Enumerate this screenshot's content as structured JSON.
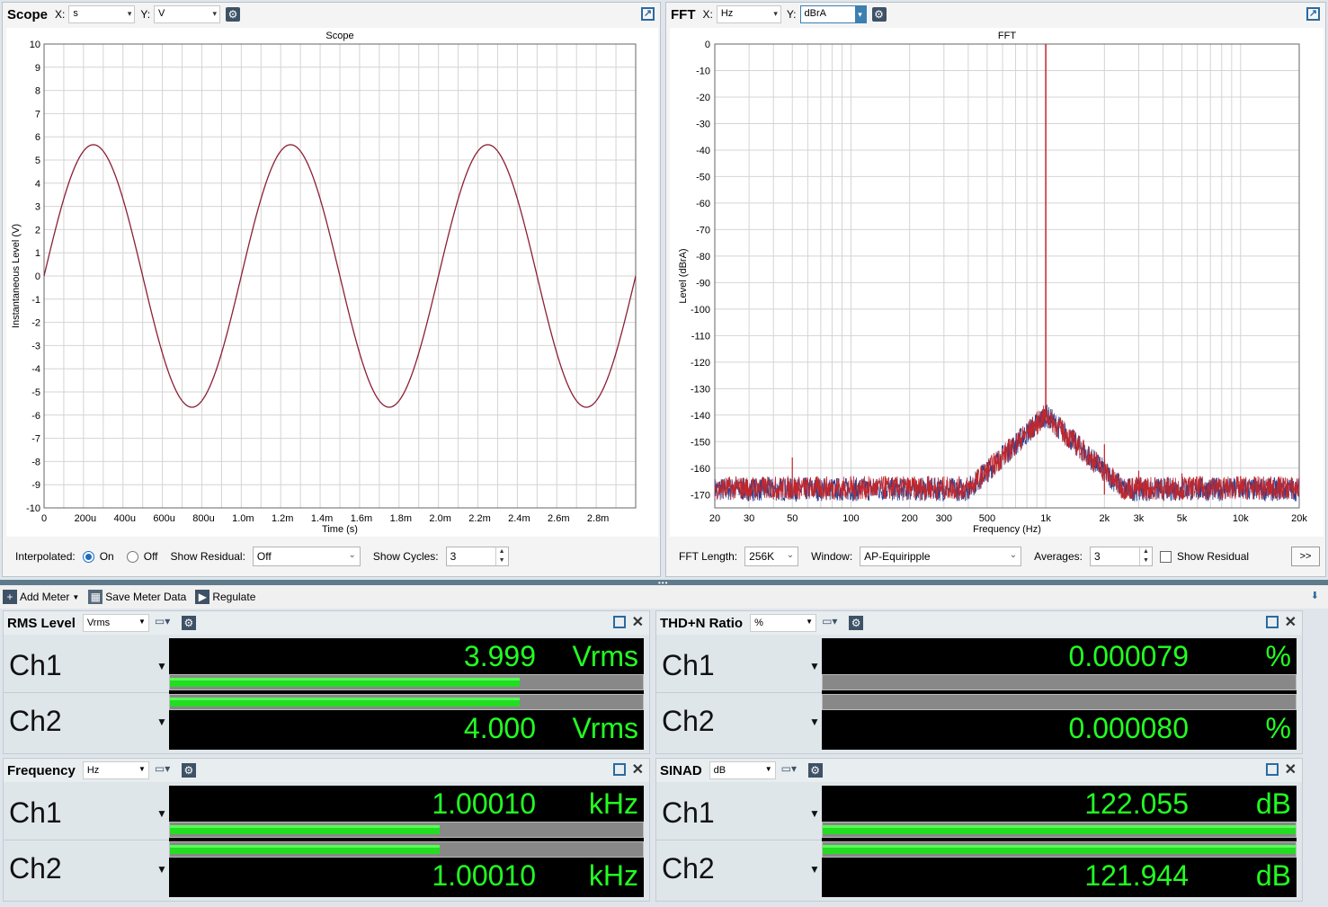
{
  "scope_panel": {
    "title": "Scope",
    "x_axis_label": "X:",
    "x_unit": "s",
    "y_axis_label": "Y:",
    "y_unit": "V",
    "footer": {
      "interpolated_label": "Interpolated:",
      "on_label": "On",
      "off_label": "Off",
      "interpolated_value": "On",
      "show_residual_label": "Show Residual:",
      "show_residual_value": "Off",
      "show_cycles_label": "Show Cycles:",
      "show_cycles_value": "3"
    }
  },
  "fft_panel": {
    "title": "FFT",
    "x_axis_label": "X:",
    "x_unit": "Hz",
    "y_axis_label": "Y:",
    "y_unit": "dBrA",
    "footer": {
      "fft_length_label": "FFT Length:",
      "fft_length_value": "256K",
      "window_label": "Window:",
      "window_value": "AP-Equiripple",
      "averages_label": "Averages:",
      "averages_value": "3",
      "show_residual_label": "Show Residual",
      "more_label": ">>"
    }
  },
  "chart_data": [
    {
      "type": "line",
      "title": "Scope",
      "xlabel": "Time (s)",
      "ylabel": "Instantaneous Level (V)",
      "xlim": [
        0,
        0.003
      ],
      "ylim": [
        -10,
        10
      ],
      "x_ticks": [
        "0",
        "200u",
        "400u",
        "600u",
        "800u",
        "1.0m",
        "1.2m",
        "1.4m",
        "1.6m",
        "1.8m",
        "2.0m",
        "2.2m",
        "2.4m",
        "2.6m",
        "2.8m"
      ],
      "y_ticks": [
        "10",
        "9",
        "8",
        "7",
        "6",
        "5",
        "4",
        "3",
        "2",
        "1",
        "0",
        "-1",
        "-2",
        "-3",
        "-4",
        "-5",
        "-6",
        "-7",
        "-8",
        "-9",
        "-10"
      ],
      "grid": true,
      "series": [
        {
          "waveform": "sine",
          "amplitude": 5.66,
          "frequency_hz": 1000,
          "color": "#8b2035"
        }
      ]
    },
    {
      "type": "line",
      "title": "FFT",
      "xlabel": "Frequency (Hz)",
      "ylabel": "Level (dBrA)",
      "x_scale": "log",
      "xlim": [
        20,
        20000
      ],
      "ylim": [
        -175,
        0
      ],
      "x_ticks": [
        "20",
        "30",
        "50",
        "100",
        "200",
        "300",
        "500",
        "1k",
        "2k",
        "3k",
        "5k",
        "10k",
        "20k"
      ],
      "y_ticks": [
        "0",
        "-10",
        "-20",
        "-30",
        "-40",
        "-50",
        "-60",
        "-70",
        "-80",
        "-90",
        "-100",
        "-110",
        "-120",
        "-130",
        "-140",
        "-150",
        "-160",
        "-170"
      ],
      "grid": true,
      "noise_floor_db": -168,
      "fundamental": {
        "x": 1000,
        "y": 0
      },
      "spurs": [
        {
          "x": 50,
          "y": -156
        },
        {
          "x": 150,
          "y": -163
        },
        {
          "x": 250,
          "y": -163
        },
        {
          "x": 2000,
          "y": -151
        },
        {
          "x": 3000,
          "y": -161
        },
        {
          "x": 5000,
          "y": -162
        },
        {
          "x": 10000,
          "y": -163
        }
      ],
      "series_colors": [
        "#2b3f8f",
        "#c0272d"
      ]
    }
  ],
  "toolbar": {
    "add_meter": "Add Meter",
    "save_meter_data": "Save Meter Data",
    "regulate": "Regulate"
  },
  "meters": {
    "rms": {
      "title": "RMS Level",
      "unit_select": "Vrms",
      "ch1_label": "Ch1",
      "ch2_label": "Ch2",
      "ch1_value": "3.999",
      "ch2_value": "4.000",
      "ch1_unit": "Vrms",
      "ch2_unit": "Vrms",
      "ch1_level": 0.74,
      "ch2_level": 0.74
    },
    "thdn": {
      "title": "THD+N Ratio",
      "unit_select": "%",
      "ch1_label": "Ch1",
      "ch2_label": "Ch2",
      "ch1_value": "0.000079",
      "ch2_value": "0.000080",
      "ch1_unit": "%",
      "ch2_unit": "%",
      "ch1_level": 0.0,
      "ch2_level": 0.0
    },
    "freq": {
      "title": "Frequency",
      "unit_select": "Hz",
      "ch1_label": "Ch1",
      "ch2_label": "Ch2",
      "ch1_value": "1.00010",
      "ch2_value": "1.00010",
      "ch1_unit": "kHz",
      "ch2_unit": "kHz",
      "ch1_level": 0.57,
      "ch2_level": 0.57
    },
    "sinad": {
      "title": "SINAD",
      "unit_select": "dB",
      "ch1_label": "Ch1",
      "ch2_label": "Ch2",
      "ch1_value": "122.055",
      "ch2_value": "121.944",
      "ch1_unit": "dB",
      "ch2_unit": "dB",
      "ch1_level": 1.0,
      "ch2_level": 1.0
    }
  },
  "colors": {
    "meter_green": "#22ff22",
    "scope_trace": "#8b2035",
    "fft_trace_ch1": "#2b3f8f",
    "fft_trace_ch2": "#c0272d"
  }
}
